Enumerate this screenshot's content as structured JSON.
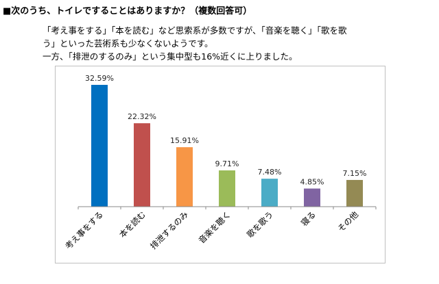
{
  "header": {
    "title": "■次のうち、トイレですることはありますか？（複数回答可）",
    "description": [
      "「考え事をする」「本を読む」など思索系が多数ですが、「音楽を聴く」「歌を歌",
      "う」といった芸術系も少なくないようです。",
      "一方、「排泄のするのみ」という集中型も16%近くに上りました。"
    ]
  },
  "chart_data": {
    "type": "bar",
    "title": "",
    "xlabel": "",
    "ylabel": "",
    "ylim": [
      0,
      35
    ],
    "grid": false,
    "categories": [
      "考え事をする",
      "本を読む",
      "排泄するのみ",
      "音楽を聴く",
      "歌を歌う",
      "寝る",
      "その他"
    ],
    "values": [
      32.59,
      22.32,
      15.91,
      9.71,
      7.48,
      4.85,
      7.15
    ],
    "data_labels": [
      "32.59%",
      "22.32%",
      "15.91%",
      "9.71%",
      "7.48%",
      "4.85%",
      "7.15%"
    ],
    "colors": [
      "#0070c0",
      "#c0504d",
      "#f79646",
      "#9bbb59",
      "#4bacc6",
      "#8064a2",
      "#948a54"
    ]
  }
}
